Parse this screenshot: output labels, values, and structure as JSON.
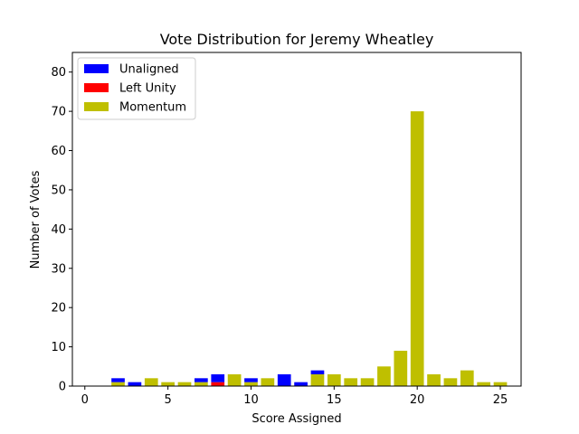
{
  "chart_data": {
    "type": "bar",
    "stacked": true,
    "title": "Vote Distribution for Jeremy Wheatley",
    "xlabel": "Score Assigned",
    "ylabel": "Number of Votes",
    "xlim": [
      -0.75,
      26.25
    ],
    "ylim": [
      0,
      85
    ],
    "xticks": [
      0,
      5,
      10,
      15,
      20,
      25
    ],
    "yticks": [
      0,
      10,
      20,
      30,
      40,
      50,
      60,
      70,
      80
    ],
    "grid": false,
    "legend_position": "upper-left",
    "x": [
      1,
      2,
      3,
      4,
      5,
      6,
      7,
      8,
      9,
      10,
      11,
      12,
      13,
      14,
      15,
      16,
      17,
      18,
      19,
      20,
      21,
      22,
      23,
      24,
      25
    ],
    "series": [
      {
        "name": "Momentum",
        "color": "#bfbf00",
        "values": [
          0,
          1,
          0,
          2,
          1,
          1,
          1,
          0,
          3,
          1,
          2,
          0,
          0,
          3,
          3,
          2,
          2,
          5,
          9,
          70,
          3,
          2,
          4,
          1,
          1
        ]
      },
      {
        "name": "Left Unity",
        "color": "#ff0000",
        "values": [
          0,
          0,
          0,
          0,
          0,
          0,
          0,
          1,
          0,
          0,
          0,
          0,
          0,
          0,
          0,
          0,
          0,
          0,
          0,
          0,
          0,
          0,
          0,
          0,
          0
        ]
      },
      {
        "name": "Unaligned",
        "color": "#0000ff",
        "values": [
          0,
          1,
          1,
          0,
          0,
          0,
          1,
          2,
          0,
          1,
          0,
          3,
          1,
          1,
          0,
          0,
          0,
          0,
          0,
          0,
          0,
          0,
          0,
          0,
          0
        ]
      }
    ],
    "legend_order": [
      "Unaligned",
      "Left Unity",
      "Momentum"
    ]
  }
}
